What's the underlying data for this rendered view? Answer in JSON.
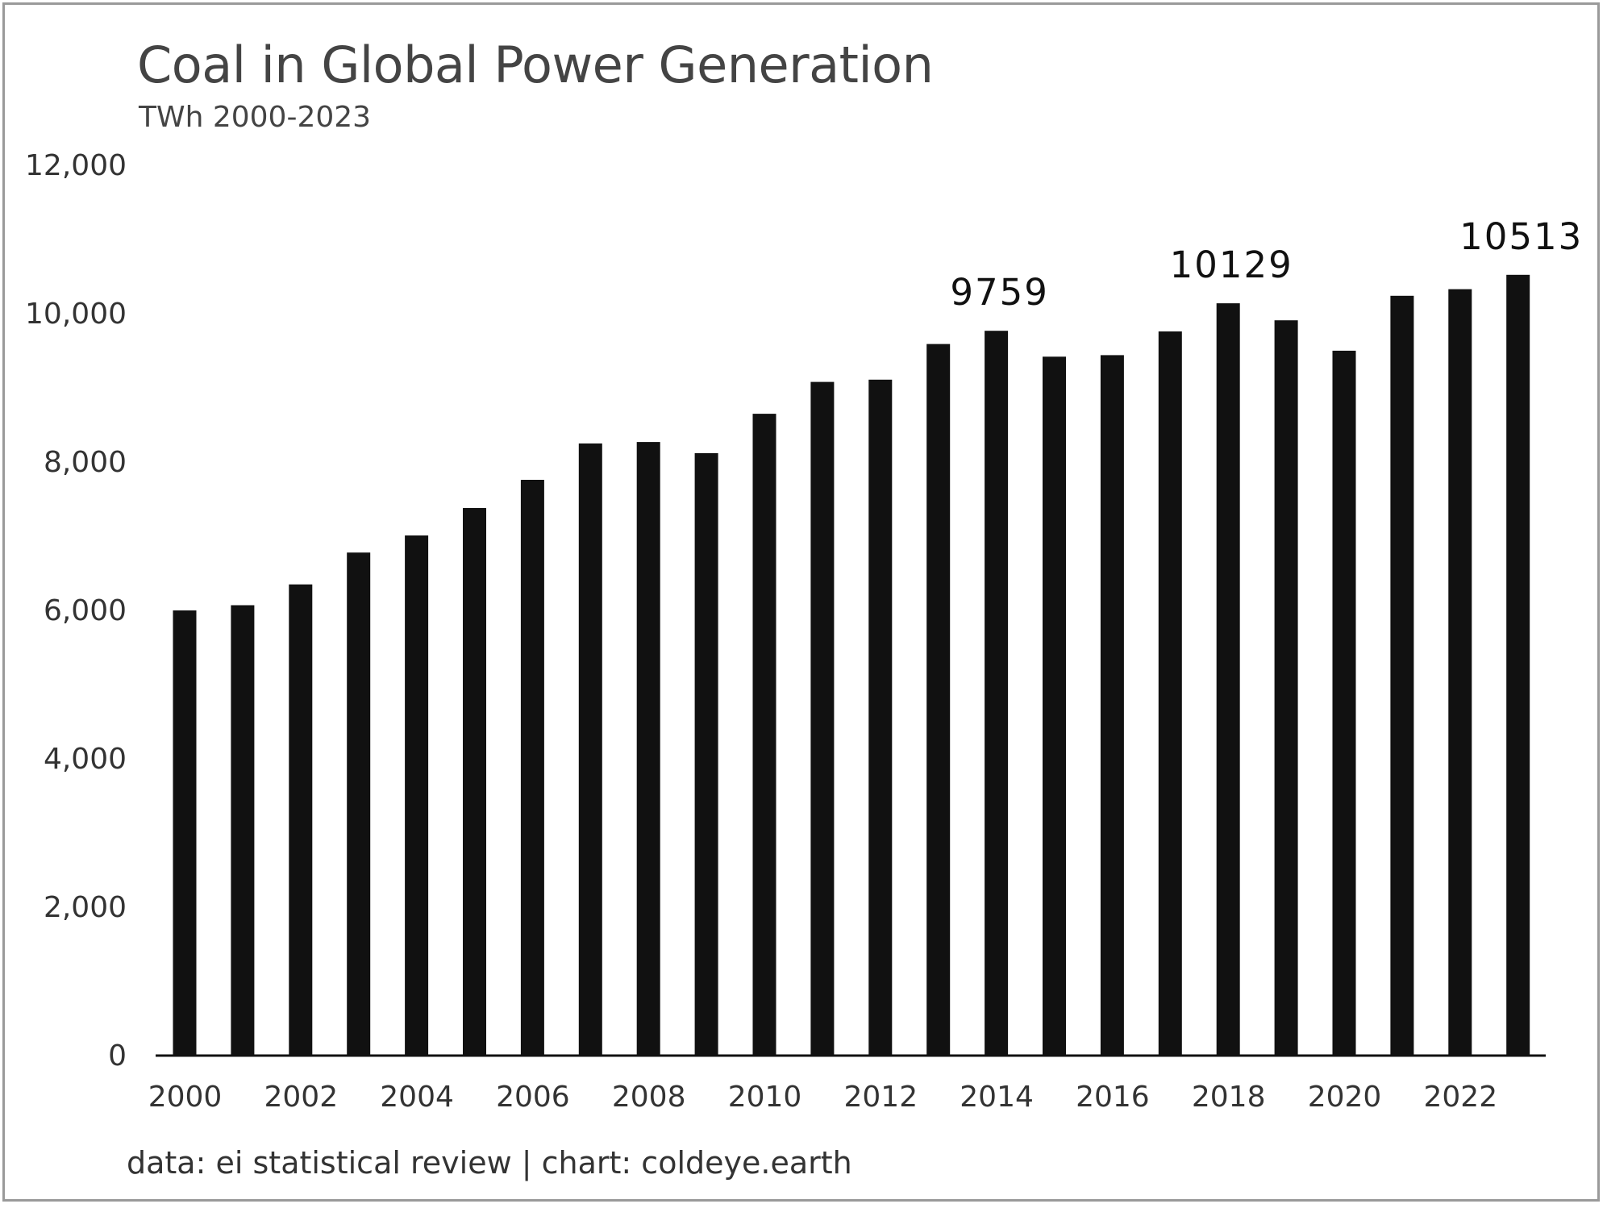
{
  "chart_data": {
    "type": "bar",
    "title": "Coal in Global Power Generation",
    "subtitle": "TWh 2000-2023",
    "footer": "data: ei statistical review | chart: coldeye.earth",
    "categories": [
      "2000",
      "2001",
      "2002",
      "2003",
      "2004",
      "2005",
      "2006",
      "2007",
      "2008",
      "2009",
      "2010",
      "2011",
      "2012",
      "2013",
      "2014",
      "2015",
      "2016",
      "2017",
      "2018",
      "2019",
      "2020",
      "2021",
      "2022",
      "2023"
    ],
    "values": [
      5990,
      6060,
      6340,
      6770,
      7000,
      7370,
      7750,
      8240,
      8260,
      8110,
      8640,
      9070,
      9100,
      9580,
      9759,
      9410,
      9430,
      9750,
      10129,
      9900,
      9490,
      10230,
      10320,
      10513
    ],
    "x_tick_labels": [
      "2000",
      "2002",
      "2004",
      "2006",
      "2008",
      "2010",
      "2012",
      "2014",
      "2016",
      "2018",
      "2020",
      "2022"
    ],
    "y_ticks": [
      0,
      2000,
      4000,
      6000,
      8000,
      10000,
      12000
    ],
    "y_tick_labels": [
      "0",
      "2,000",
      "4,000",
      "6,000",
      "8,000",
      "10,000",
      "12,000"
    ],
    "ylim": [
      0,
      12000
    ],
    "annotations": [
      {
        "category": "2014",
        "text": "9759"
      },
      {
        "category": "2018",
        "text": "10129"
      },
      {
        "category": "2023",
        "text": "10513"
      }
    ],
    "xlabel": "",
    "ylabel": "",
    "grid": false,
    "bar_color": "#111111"
  }
}
